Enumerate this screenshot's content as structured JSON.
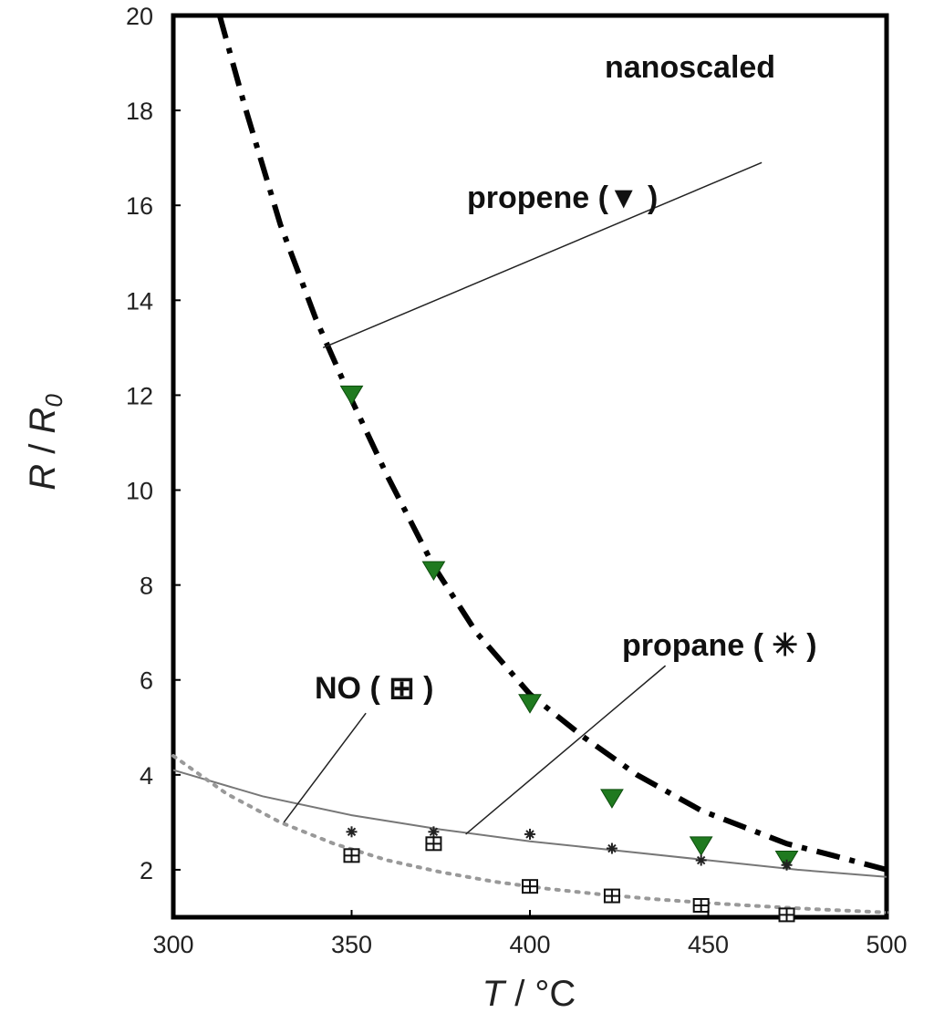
{
  "chart_data": {
    "type": "scatter",
    "title": "",
    "xlabel": "T / °C",
    "ylabel": "R / R0",
    "xlim": [
      300,
      500
    ],
    "ylim": [
      1,
      20
    ],
    "xticks": [
      "300",
      "350",
      "400",
      "450",
      "500"
    ],
    "yticks": [
      "2",
      "4",
      "6",
      "8",
      "10",
      "12",
      "14",
      "16",
      "18",
      "20"
    ],
    "grid": false,
    "annotations": {
      "corner": "nanoscaled",
      "propene": "propene (▼ )",
      "propane": "propane ( ✳ )",
      "no": "NO ( ⊞ )"
    },
    "colors": {
      "propene_marker": "#1f7a1f",
      "fit_line": "#000000",
      "propane_fit": "#777777",
      "no_fit": "#999999"
    },
    "series": [
      {
        "name": "propene",
        "marker": "triangle-down",
        "x": [
          350,
          373,
          400,
          423,
          448,
          472
        ],
        "y": [
          12.0,
          8.3,
          5.5,
          3.5,
          2.5,
          2.2
        ],
        "fit": {
          "style": "dash-dot",
          "x": [
            313,
            320,
            330,
            340,
            350,
            360,
            373,
            385,
            400,
            415,
            430,
            448,
            460,
            472,
            485,
            500
          ],
          "y": [
            20.0,
            18.1,
            15.6,
            13.6,
            11.9,
            10.3,
            8.4,
            7.0,
            5.7,
            4.8,
            4.0,
            3.25,
            2.9,
            2.55,
            2.3,
            2.0
          ]
        }
      },
      {
        "name": "propane",
        "marker": "asterisk",
        "x": [
          350,
          373,
          400,
          423,
          448,
          472
        ],
        "y": [
          2.8,
          2.8,
          2.75,
          2.45,
          2.2,
          2.1
        ],
        "fit": {
          "style": "solid",
          "x": [
            300,
            325,
            350,
            375,
            400,
            425,
            450,
            475,
            500
          ],
          "y": [
            4.1,
            3.55,
            3.15,
            2.85,
            2.6,
            2.4,
            2.2,
            2.0,
            1.85
          ]
        }
      },
      {
        "name": "NO",
        "marker": "boxed-plus",
        "x": [
          350,
          373,
          400,
          423,
          448,
          472
        ],
        "y": [
          2.3,
          2.55,
          1.65,
          1.45,
          1.25,
          1.05
        ],
        "fit": {
          "style": "dotted",
          "x": [
            300,
            315,
            330,
            345,
            360,
            375,
            390,
            405,
            420,
            435,
            450,
            465,
            480,
            500
          ],
          "y": [
            4.4,
            3.6,
            3.0,
            2.55,
            2.2,
            1.95,
            1.75,
            1.6,
            1.48,
            1.38,
            1.3,
            1.23,
            1.17,
            1.1
          ]
        }
      }
    ]
  }
}
